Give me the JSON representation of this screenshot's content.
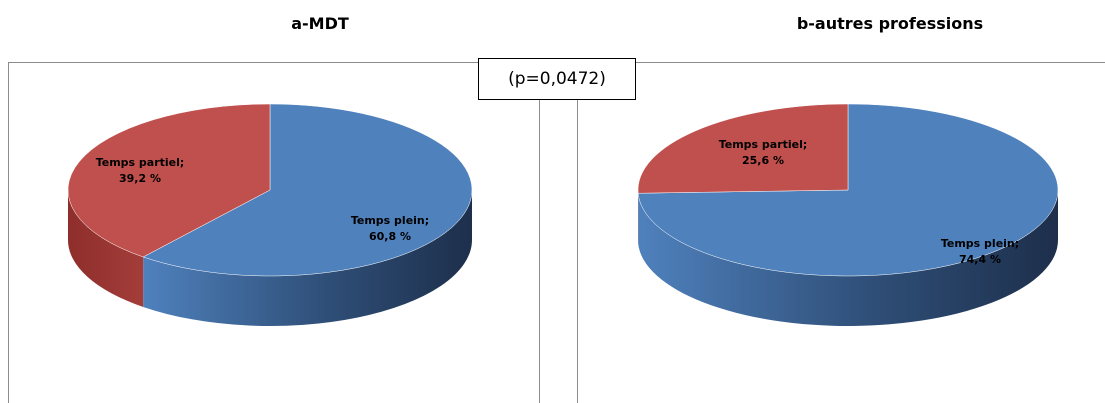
{
  "pvalue_text": "(p=0,0472)",
  "colors": {
    "plein": "#4f81bd",
    "partiel": "#c0504d"
  },
  "chart_data": [
    {
      "type": "pie",
      "title": "a-MDT",
      "slices": [
        {
          "name": "Temps plein",
          "value": 60.8,
          "label": "Temps plein;",
          "value_label": "60,8 %"
        },
        {
          "name": "Temps partiel",
          "value": 39.2,
          "label": "Temps partiel;",
          "value_label": "39,2 %"
        }
      ]
    },
    {
      "type": "pie",
      "title": "b-autres professions",
      "slices": [
        {
          "name": "Temps plein",
          "value": 74.4,
          "label": "Temps plein;",
          "value_label": "74,4 %"
        },
        {
          "name": "Temps partiel",
          "value": 25.6,
          "label": "Temps partiel;",
          "value_label": "25,6 %"
        }
      ]
    }
  ]
}
